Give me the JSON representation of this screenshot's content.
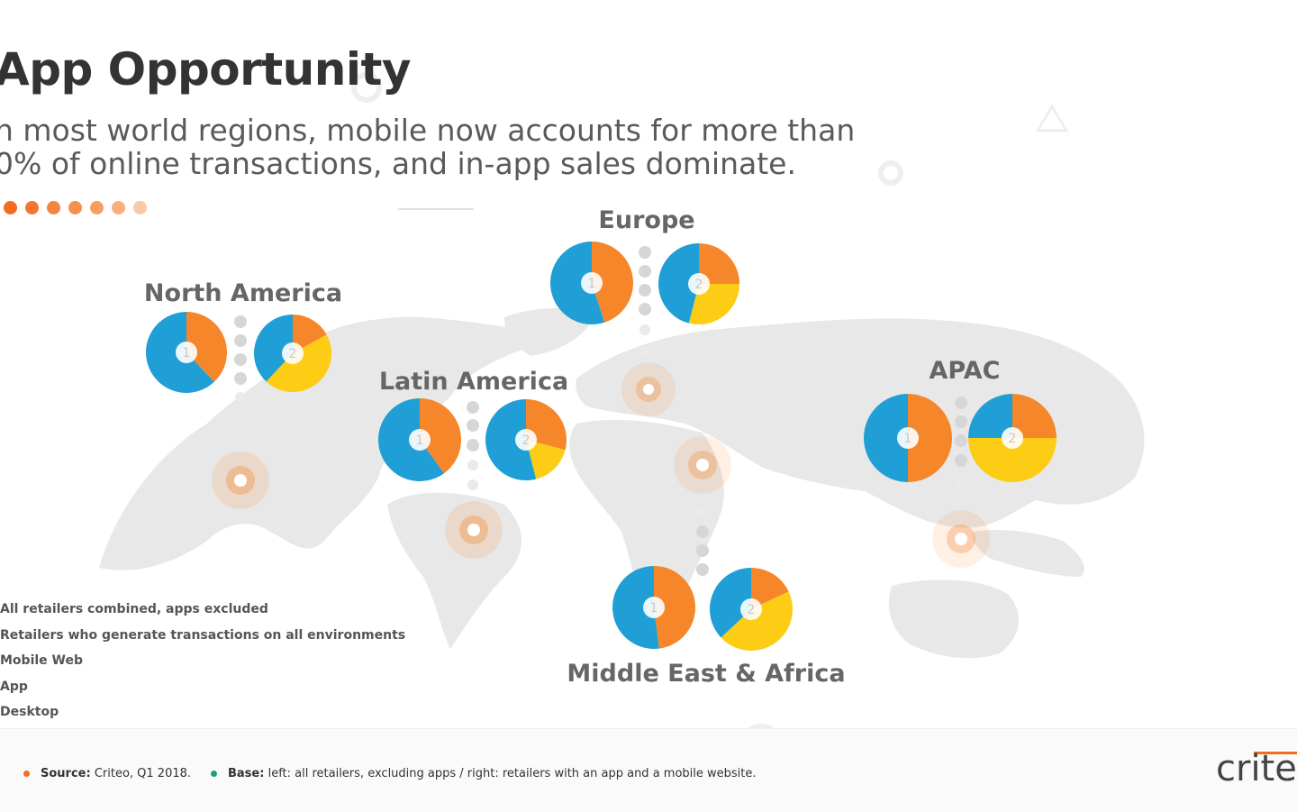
{
  "page": {
    "title": "App Opportunity",
    "subtitle_line1": "n most world regions, mobile now accounts for more than",
    "subtitle_line2": "0% of online transactions, and in-app sales dominate."
  },
  "colors": {
    "mobile_web": "#f5862a",
    "app": "#fccd14",
    "desktop": "#1f9fd5",
    "accent": "#f26c21",
    "base_bullet": "#1aa37a",
    "map": "#e6e6e6"
  },
  "legend": {
    "item1": "All retailers combined, apps excluded",
    "item2": "Retailers who generate transactions on all environments",
    "item3": "Mobile Web",
    "item4": "App",
    "item5": "Desktop"
  },
  "footer": {
    "source_label": "Source:",
    "source_text": "Criteo, Q1 2018.",
    "base_label": "Base:",
    "base_text": "left: all retailers, excluding apps / right: retailers with an app and a mobile website.",
    "logo": "criteo"
  },
  "chart_data": [
    {
      "type": "pie",
      "region": "North America",
      "chart": "1",
      "series": [
        {
          "name": "Mobile Web",
          "value": 38
        },
        {
          "name": "Desktop",
          "value": 62
        }
      ]
    },
    {
      "type": "pie",
      "region": "North America",
      "chart": "2",
      "series": [
        {
          "name": "Mobile Web",
          "value": 17
        },
        {
          "name": "App",
          "value": 45
        },
        {
          "name": "Desktop",
          "value": 38
        }
      ]
    },
    {
      "type": "pie",
      "region": "Europe",
      "chart": "1",
      "series": [
        {
          "name": "Mobile Web",
          "value": 45
        },
        {
          "name": "Desktop",
          "value": 55
        }
      ]
    },
    {
      "type": "pie",
      "region": "Europe",
      "chart": "2",
      "series": [
        {
          "name": "Mobile Web",
          "value": 25
        },
        {
          "name": "App",
          "value": 29
        },
        {
          "name": "Desktop",
          "value": 46
        }
      ]
    },
    {
      "type": "pie",
      "region": "Latin America",
      "chart": "1",
      "series": [
        {
          "name": "Mobile Web",
          "value": 40
        },
        {
          "name": "Desktop",
          "value": 60
        }
      ]
    },
    {
      "type": "pie",
      "region": "Latin America",
      "chart": "2",
      "series": [
        {
          "name": "Mobile Web",
          "value": 29
        },
        {
          "name": "App",
          "value": 17
        },
        {
          "name": "Desktop",
          "value": 54
        }
      ]
    },
    {
      "type": "pie",
      "region": "APAC",
      "chart": "1",
      "series": [
        {
          "name": "Mobile Web",
          "value": 50
        },
        {
          "name": "Desktop",
          "value": 50
        }
      ]
    },
    {
      "type": "pie",
      "region": "APAC",
      "chart": "2",
      "series": [
        {
          "name": "Mobile Web",
          "value": 25
        },
        {
          "name": "App",
          "value": 50
        },
        {
          "name": "Desktop",
          "value": 25
        }
      ]
    },
    {
      "type": "pie",
      "region": "Middle East & Africa",
      "chart": "1",
      "series": [
        {
          "name": "Mobile Web",
          "value": 48
        },
        {
          "name": "Desktop",
          "value": 52
        }
      ]
    },
    {
      "type": "pie",
      "region": "Middle East & Africa",
      "chart": "2",
      "series": [
        {
          "name": "Mobile Web",
          "value": 18
        },
        {
          "name": "App",
          "value": 45
        },
        {
          "name": "Desktop",
          "value": 37
        }
      ]
    }
  ]
}
